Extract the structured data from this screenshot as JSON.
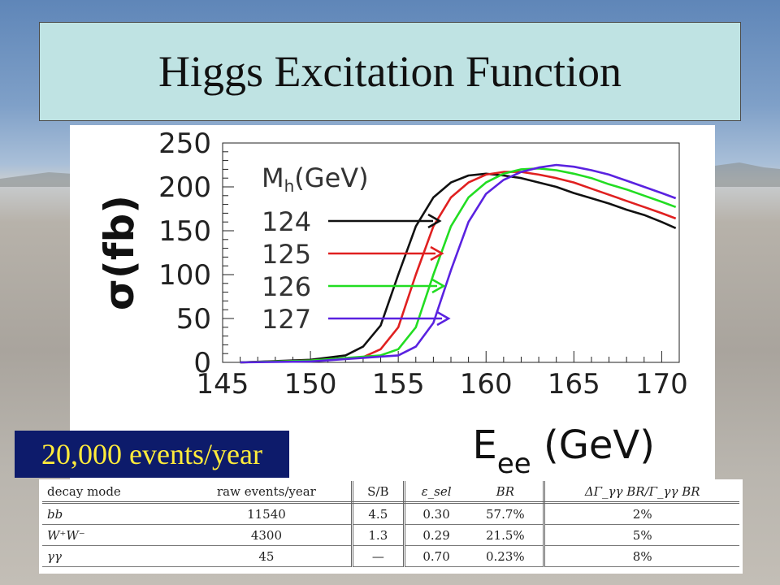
{
  "slide": {
    "title": "Higgs Excitation Function",
    "events_label": "20,000 events/year"
  },
  "chart_data": {
    "type": "line",
    "xlabel": "E_ee (GeV)",
    "ylabel": "σ(fb)",
    "xlim": [
      145,
      171
    ],
    "ylim": [
      0,
      250
    ],
    "x_ticks": [
      "145",
      "150",
      "155",
      "160",
      "165",
      "170"
    ],
    "y_ticks": [
      "0",
      "50",
      "100",
      "150",
      "200",
      "250"
    ],
    "legend_title": "M_h(GeV)",
    "colors": [
      "#111111",
      "#e02020",
      "#22dd22",
      "#5a22e0"
    ],
    "series": [
      {
        "name": "124",
        "x": [
          146,
          150,
          152,
          153,
          154,
          155,
          156,
          157,
          158,
          159,
          160,
          161,
          162,
          163,
          164,
          165,
          166,
          167,
          168,
          169,
          170,
          170.8
        ],
        "y": [
          0,
          3,
          8,
          18,
          42,
          100,
          155,
          188,
          205,
          213,
          215,
          213,
          210,
          205,
          200,
          193,
          187,
          181,
          174,
          168,
          160,
          153
        ]
      },
      {
        "name": "125",
        "x": [
          146,
          150,
          153,
          154,
          155,
          156,
          157,
          158,
          159,
          160,
          161,
          162,
          163,
          164,
          165,
          166,
          167,
          168,
          169,
          170,
          170.8
        ],
        "y": [
          0,
          2,
          6,
          15,
          40,
          100,
          155,
          188,
          205,
          214,
          217,
          217,
          214,
          210,
          205,
          198,
          191,
          184,
          177,
          170,
          164
        ]
      },
      {
        "name": "126",
        "x": [
          146,
          150,
          154,
          155,
          156,
          157,
          158,
          159,
          160,
          161,
          162,
          163,
          164,
          165,
          166,
          167,
          168,
          169,
          170,
          170.8
        ],
        "y": [
          0,
          2,
          8,
          15,
          40,
          100,
          155,
          188,
          205,
          215,
          220,
          221,
          219,
          215,
          210,
          203,
          197,
          190,
          183,
          177
        ]
      },
      {
        "name": "127",
        "x": [
          146,
          150,
          155,
          156,
          157,
          158,
          159,
          160,
          161,
          162,
          163,
          164,
          165,
          166,
          167,
          168,
          169,
          170,
          170.8
        ],
        "y": [
          0,
          1,
          8,
          18,
          45,
          105,
          160,
          192,
          208,
          217,
          222,
          225,
          223,
          219,
          214,
          207,
          200,
          193,
          187
        ]
      }
    ],
    "annotations": {
      "unit_note": "Mh(GeV)"
    }
  },
  "table": {
    "headers": [
      "decay mode",
      "raw events/year",
      "S/B",
      "ε_sel",
      "BR",
      "ΔΓ_γγ BR/Γ_γγ BR"
    ],
    "rows": [
      [
        "bb",
        "11540",
        "4.5",
        "0.30",
        "57.7%",
        "2%"
      ],
      [
        "W⁺W⁻",
        "4300",
        "1.3",
        "0.29",
        "21.5%",
        "5%"
      ],
      [
        "γγ",
        "45",
        "—",
        "0.70",
        "0.23%",
        "8%"
      ]
    ]
  }
}
